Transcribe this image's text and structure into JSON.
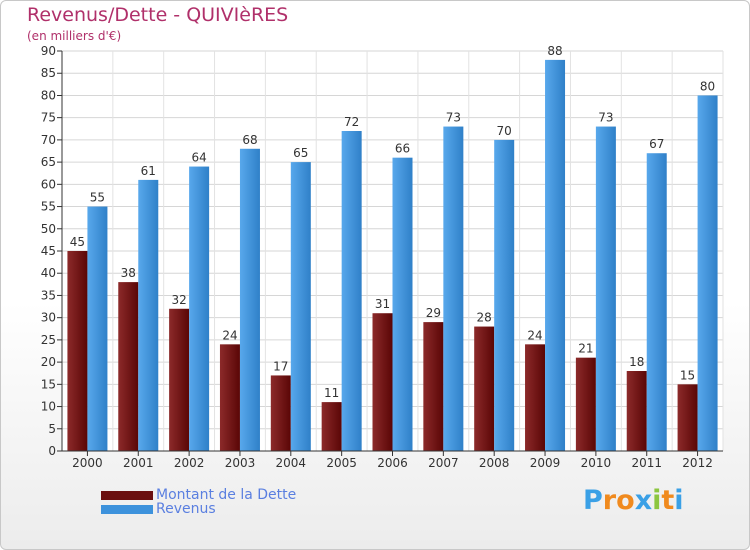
{
  "title": "Revenus/Dette - QUIVIèRES",
  "subtitle": "(en milliers d'€)",
  "brand": {
    "letters": [
      "P",
      "r",
      "o",
      "x",
      "i",
      "t",
      "i"
    ],
    "colors": [
      "#3aa0e6",
      "#f08a1e",
      "#f08a1e",
      "#3aa0e6",
      "#8cc63f",
      "#f08a1e",
      "#3aa0e6"
    ]
  },
  "chart_data": {
    "type": "bar",
    "title": "Revenus/Dette - QUIVIèRES",
    "subtitle": "(en milliers d'€)",
    "categories": [
      "2000",
      "2001",
      "2002",
      "2003",
      "2004",
      "2005",
      "2006",
      "2007",
      "2008",
      "2009",
      "2010",
      "2011",
      "2012"
    ],
    "series": [
      {
        "name": "Montant de la Dette",
        "color": "#6b0f0f",
        "values": [
          45,
          38,
          32,
          24,
          17,
          11,
          31,
          29,
          28,
          24,
          21,
          18,
          15
        ]
      },
      {
        "name": "Revenus",
        "color": "#3d92dc",
        "values": [
          55,
          61,
          64,
          68,
          65,
          72,
          66,
          73,
          70,
          88,
          73,
          67,
          80
        ]
      }
    ],
    "ylim": [
      0,
      90
    ],
    "yticks": [
      0,
      5,
      10,
      15,
      20,
      25,
      30,
      35,
      40,
      45,
      50,
      55,
      60,
      65,
      70,
      75,
      80,
      85,
      90
    ],
    "grid": true,
    "legend": "bottom-left"
  }
}
